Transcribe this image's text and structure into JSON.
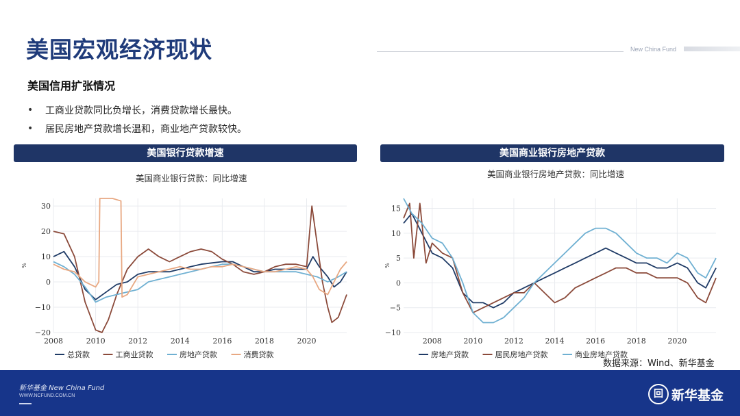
{
  "header": {
    "title": "美国宏观经济现状",
    "brand_en": "New China Fund"
  },
  "section": {
    "subtitle": "美国信用扩张情况",
    "bullets": [
      "工商业贷款同比负增长，消费贷款增长最快。",
      "居民房地产贷款增长温和，商业地产贷款较快。"
    ]
  },
  "panels": {
    "left_title": "美国银行贷款增速",
    "right_title": "美国商业银行房地产贷款"
  },
  "chart_data": [
    {
      "type": "line",
      "title": "美国商业银行贷款：同比增速",
      "ylabel": "%",
      "xlim": [
        2008,
        2021.9
      ],
      "ylim": [
        -20,
        33
      ],
      "x_ticks": [
        "2008",
        "2010",
        "2012",
        "2014",
        "2016",
        "2018",
        "2020"
      ],
      "y_ticks": [
        "30",
        "20",
        "10",
        "0",
        "−10",
        "−20"
      ],
      "grid": true,
      "legend_position": "bottom",
      "series": [
        {
          "name": "总贷款",
          "color": "#1f3b66",
          "x": [
            2008,
            2008.5,
            2009,
            2009.5,
            2010,
            2010.5,
            2011,
            2011.5,
            2012,
            2012.5,
            2013,
            2013.5,
            2014,
            2014.5,
            2015,
            2015.5,
            2016,
            2016.5,
            2017,
            2017.5,
            2018,
            2018.5,
            2019,
            2019.5,
            2020,
            2020.3,
            2020.6,
            2021,
            2021.3,
            2021.6,
            2021.9
          ],
          "y": [
            10,
            12,
            6,
            -3,
            -7,
            -4,
            -1,
            0,
            3,
            4,
            4,
            4,
            5,
            6,
            7,
            7.5,
            8,
            8,
            6,
            4,
            4,
            5,
            5,
            5,
            5,
            10,
            6,
            2,
            -2,
            0,
            4
          ]
        },
        {
          "name": "工商业贷款",
          "color": "#8b4a3a",
          "x": [
            2008,
            2008.5,
            2009,
            2009.5,
            2010,
            2010.3,
            2010.6,
            2011,
            2011.5,
            2012,
            2012.5,
            2013,
            2013.5,
            2014,
            2014.5,
            2015,
            2015.5,
            2016,
            2016.5,
            2017,
            2017.5,
            2018,
            2018.5,
            2019,
            2019.5,
            2020,
            2020.25,
            2020.5,
            2020.75,
            2021,
            2021.2,
            2021.5,
            2021.9
          ],
          "y": [
            20,
            19,
            10,
            -8,
            -19,
            -20,
            -15,
            -5,
            5,
            10,
            13,
            10,
            8,
            10,
            12,
            13,
            12,
            9,
            7,
            4,
            3,
            4,
            6,
            7,
            7,
            6,
            30,
            15,
            0,
            -10,
            -16,
            -14,
            -5
          ]
        },
        {
          "name": "房地产贷款",
          "color": "#6fb0d2",
          "x": [
            2008,
            2008.5,
            2009,
            2009.5,
            2010,
            2010.5,
            2011,
            2011.5,
            2012,
            2012.5,
            2013,
            2013.5,
            2014,
            2014.5,
            2015,
            2015.5,
            2016,
            2016.5,
            2017,
            2017.5,
            2018,
            2018.5,
            2019,
            2019.5,
            2020,
            2020.5,
            2021,
            2021.5,
            2021.9
          ],
          "y": [
            8,
            6,
            3,
            -2,
            -8,
            -6,
            -5,
            -4,
            -3,
            0,
            1,
            2,
            3,
            4,
            5,
            6,
            7,
            7,
            6,
            5,
            4,
            4,
            4,
            4,
            3,
            2,
            0,
            2,
            4
          ]
        },
        {
          "name": "消费贷款",
          "color": "#e8a882",
          "x": [
            2008,
            2008.5,
            2009,
            2009.5,
            2010,
            2010.15,
            2010.2,
            2010.8,
            2011.2,
            2011.25,
            2011.5,
            2012,
            2012.5,
            2013,
            2013.5,
            2014,
            2014.5,
            2015,
            2015.5,
            2016,
            2016.5,
            2017,
            2017.5,
            2018,
            2018.5,
            2019,
            2019.5,
            2020,
            2020.3,
            2020.6,
            2021,
            2021.3,
            2021.6,
            2021.9
          ],
          "y": [
            7,
            5,
            4,
            0,
            -2,
            0,
            33,
            33,
            32,
            -6,
            -5,
            2,
            3,
            4,
            5,
            6,
            5,
            5,
            6,
            6,
            7,
            6,
            5,
            4,
            4,
            5,
            6,
            5,
            2,
            -3,
            -5,
            0,
            5,
            8
          ]
        }
      ]
    },
    {
      "type": "line",
      "title": "美国商业银行房地产贷款：同比增速",
      "ylabel": "%",
      "xlim": [
        2006.6,
        2021.9
      ],
      "ylim": [
        -10,
        17
      ],
      "x_ticks": [
        "2008",
        "2010",
        "2012",
        "2014",
        "2016",
        "2018",
        "2020"
      ],
      "y_ticks": [
        "15",
        "10",
        "5",
        "0",
        "−5",
        "−10"
      ],
      "grid": true,
      "legend_position": "bottom",
      "series": [
        {
          "name": "房地产贷款",
          "color": "#1f3b66",
          "x": [
            2006.6,
            2007,
            2007.5,
            2008,
            2008.5,
            2009,
            2009.5,
            2010,
            2010.5,
            2011,
            2011.5,
            2012,
            2012.5,
            2013,
            2013.5,
            2014,
            2014.5,
            2015,
            2015.5,
            2016,
            2016.5,
            2017,
            2017.5,
            2018,
            2018.5,
            2019,
            2019.5,
            2020,
            2020.5,
            2021,
            2021.4,
            2021.9
          ],
          "y": [
            12,
            14,
            10,
            6,
            5,
            3,
            -2,
            -4,
            -4,
            -5,
            -4,
            -2,
            -1,
            0,
            1,
            2,
            3,
            4,
            5,
            6,
            7,
            6,
            5,
            4,
            4,
            3,
            3,
            4,
            3,
            0,
            -1,
            3
          ]
        },
        {
          "name": "居民房地产贷款",
          "color": "#8b4a3a",
          "x": [
            2006.6,
            2006.9,
            2007.1,
            2007.4,
            2007.7,
            2008,
            2008.5,
            2009,
            2009.5,
            2010,
            2010.5,
            2011,
            2011.5,
            2012,
            2012.5,
            2013,
            2013.5,
            2014,
            2014.5,
            2015,
            2015.5,
            2016,
            2016.5,
            2017,
            2017.5,
            2018,
            2018.5,
            2019,
            2019.5,
            2020,
            2020.5,
            2021,
            2021.4,
            2021.9
          ],
          "y": [
            13,
            16,
            5,
            16,
            4,
            8,
            6,
            5,
            -2,
            -6,
            -5,
            -4,
            -3,
            -2,
            -2,
            0,
            -2,
            -4,
            -3,
            -1,
            0,
            1,
            2,
            3,
            3,
            2,
            2,
            1,
            1,
            1,
            0,
            -3,
            -4,
            1
          ]
        },
        {
          "name": "商业房地产贷款",
          "color": "#6fb0d2",
          "x": [
            2006.6,
            2007,
            2007.5,
            2008,
            2008.5,
            2009,
            2009.5,
            2010,
            2010.5,
            2011,
            2011.5,
            2012,
            2012.5,
            2013,
            2013.5,
            2014,
            2014.5,
            2015,
            2015.5,
            2016,
            2016.5,
            2017,
            2017.5,
            2018,
            2018.5,
            2019,
            2019.5,
            2020,
            2020.5,
            2021,
            2021.4,
            2021.9
          ],
          "y": [
            17,
            14,
            12,
            9,
            8,
            5,
            0,
            -6,
            -8,
            -8,
            -7,
            -5,
            -3,
            0,
            2,
            4,
            6,
            8,
            10,
            11,
            11,
            10,
            8,
            6,
            5,
            5,
            4,
            6,
            5,
            2,
            1,
            5
          ]
        }
      ]
    }
  ],
  "source": "数据来源：Wind、新华基金",
  "footer": {
    "brand": "新华基金 New China Fund",
    "url": "WWW.NCFUND.COM.CN",
    "logo_text": "新华基金",
    "logo_glyph": "回"
  }
}
